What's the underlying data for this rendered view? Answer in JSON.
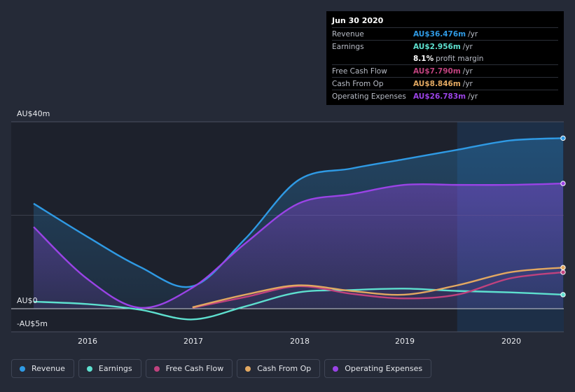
{
  "chart_data": {
    "type": "area",
    "x": [
      2015.5,
      2016.0,
      2016.5,
      2017.0,
      2017.5,
      2018.0,
      2018.5,
      2019.0,
      2019.5,
      2020.0,
      2020.5
    ],
    "ylim": [
      -5,
      40
    ],
    "y_ticks": [
      {
        "value": 40,
        "label": "AU$40m"
      },
      {
        "value": 0,
        "label": "AU$0"
      },
      {
        "value": -5,
        "label": "-AU$5m"
      }
    ],
    "x_ticks": [
      {
        "value": 2016,
        "label": "2016"
      },
      {
        "value": 2017,
        "label": "2017"
      },
      {
        "value": 2018,
        "label": "2018"
      },
      {
        "value": 2019,
        "label": "2019"
      },
      {
        "value": 2020,
        "label": "2020"
      }
    ],
    "highlight_start": 2019.5,
    "series": [
      {
        "name": "Revenue",
        "color": "#2f9ae4",
        "values": [
          22.5,
          15.5,
          9.0,
          4.8,
          15.0,
          27.5,
          30.0,
          32.0,
          34.0,
          36.0,
          36.5
        ]
      },
      {
        "name": "Earnings",
        "color": "#5ee0cf",
        "values": [
          1.5,
          1.0,
          -0.2,
          -2.3,
          0.5,
          3.5,
          4.0,
          4.3,
          3.8,
          3.5,
          3.0
        ]
      },
      {
        "name": "Free Cash Flow",
        "color": "#c0427e",
        "values": [
          null,
          null,
          null,
          0.2,
          2.5,
          4.8,
          3.2,
          2.2,
          3.0,
          6.5,
          7.8
        ]
      },
      {
        "name": "Cash From Op",
        "color": "#e2a861",
        "values": [
          null,
          null,
          null,
          0.3,
          3.0,
          5.0,
          3.8,
          3.0,
          5.0,
          7.8,
          8.8
        ]
      },
      {
        "name": "Operating Expenses",
        "color": "#9a43e6",
        "values": [
          17.5,
          6.5,
          0.2,
          4.5,
          14.0,
          22.5,
          24.5,
          26.5,
          26.5,
          26.5,
          26.8
        ]
      }
    ]
  },
  "tooltip": {
    "date": "Jun 30 2020",
    "rows": [
      {
        "label": "Revenue",
        "value": "AU$36.476m",
        "unit": "/yr",
        "color": "#2f9ae4"
      },
      {
        "label": "Earnings",
        "value": "AU$2.956m",
        "unit": "/yr",
        "color": "#5ee0cf"
      },
      {
        "label": "",
        "value": "8.1%",
        "unit": "profit margin",
        "color": "#ffffff"
      },
      {
        "label": "Free Cash Flow",
        "value": "AU$7.790m",
        "unit": "/yr",
        "color": "#c0427e"
      },
      {
        "label": "Cash From Op",
        "value": "AU$8.846m",
        "unit": "/yr",
        "color": "#e2a861"
      },
      {
        "label": "Operating Expenses",
        "value": "AU$26.783m",
        "unit": "/yr",
        "color": "#9a43e6"
      }
    ]
  },
  "legend": [
    {
      "label": "Revenue",
      "color": "#2f9ae4"
    },
    {
      "label": "Earnings",
      "color": "#5ee0cf"
    },
    {
      "label": "Free Cash Flow",
      "color": "#c0427e"
    },
    {
      "label": "Cash From Op",
      "color": "#e2a861"
    },
    {
      "label": "Operating Expenses",
      "color": "#9a43e6"
    }
  ]
}
